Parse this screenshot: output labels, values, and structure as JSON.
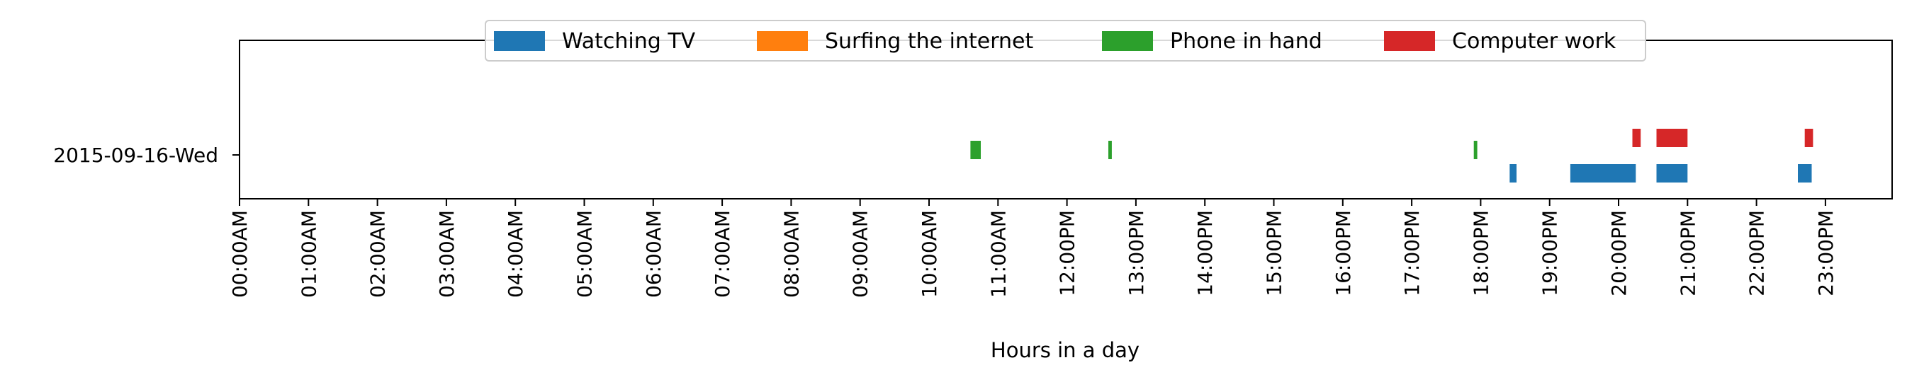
{
  "chart_data": {
    "type": "timeline",
    "xlabel": "Hours in a day",
    "xlim": [
      0,
      24
    ],
    "grid": false,
    "legend_placement": "top-center",
    "categories": [
      "2015-09-16-Wed"
    ],
    "x_tick_labels": [
      "00:00AM",
      "01:00AM",
      "02:00AM",
      "03:00AM",
      "04:00AM",
      "05:00AM",
      "06:00AM",
      "07:00AM",
      "08:00AM",
      "09:00AM",
      "10:00AM",
      "11:00AM",
      "12:00PM",
      "13:00PM",
      "14:00PM",
      "15:00PM",
      "16:00PM",
      "17:00PM",
      "18:00PM",
      "19:00PM",
      "20:00PM",
      "21:00PM",
      "22:00PM",
      "23:00PM"
    ],
    "series": [
      {
        "name": "Watching TV",
        "color": "#1f77b4",
        "intervals": [
          [
            18.42,
            18.52
          ],
          [
            19.3,
            20.25
          ],
          [
            20.55,
            21.0
          ],
          [
            22.6,
            22.8
          ]
        ]
      },
      {
        "name": "Surfing the internet",
        "color": "#ff7f0e",
        "intervals": []
      },
      {
        "name": "Phone in hand",
        "color": "#2ca02c",
        "intervals": [
          [
            10.6,
            10.75
          ],
          [
            12.6,
            12.65
          ],
          [
            17.9,
            17.95
          ]
        ]
      },
      {
        "name": "Computer work",
        "color": "#d62728",
        "intervals": [
          [
            20.2,
            20.32
          ],
          [
            20.55,
            21.0
          ],
          [
            22.7,
            22.82
          ]
        ]
      }
    ]
  }
}
